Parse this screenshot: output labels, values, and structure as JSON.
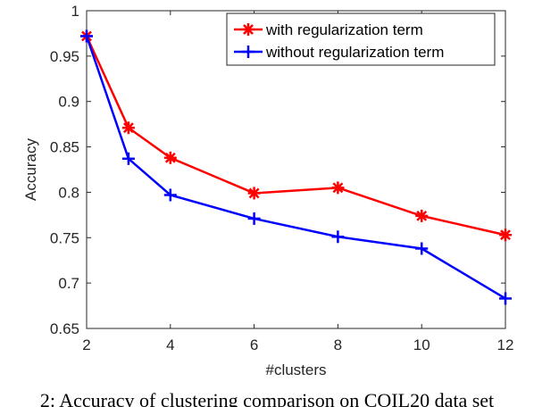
{
  "chart_data": {
    "type": "line",
    "title": "",
    "xlabel": "#clusters",
    "ylabel": "Accuracy",
    "x": [
      2,
      3,
      4,
      6,
      8,
      10,
      12
    ],
    "xticks": [
      "2",
      "4",
      "6",
      "8",
      "10",
      "12"
    ],
    "yticks": [
      "0.65",
      "0.7",
      "0.75",
      "0.8",
      "0.85",
      "0.9",
      "0.95",
      "1"
    ],
    "xlim": [
      2,
      12
    ],
    "ylim": [
      0.65,
      1.0
    ],
    "grid": false,
    "legend_position": "top-right",
    "series": [
      {
        "name": "with regularization term",
        "color": "#ff0000",
        "marker": "asterisk",
        "values": [
          0.972,
          0.871,
          0.838,
          0.799,
          0.805,
          0.774,
          0.753
        ]
      },
      {
        "name": "without regularization term",
        "color": "#0000ff",
        "marker": "plus",
        "values": [
          0.972,
          0.837,
          0.797,
          0.771,
          0.751,
          0.738,
          0.683
        ]
      }
    ]
  },
  "caption": "2: Accuracy of clustering comparison on COIL20 data set"
}
